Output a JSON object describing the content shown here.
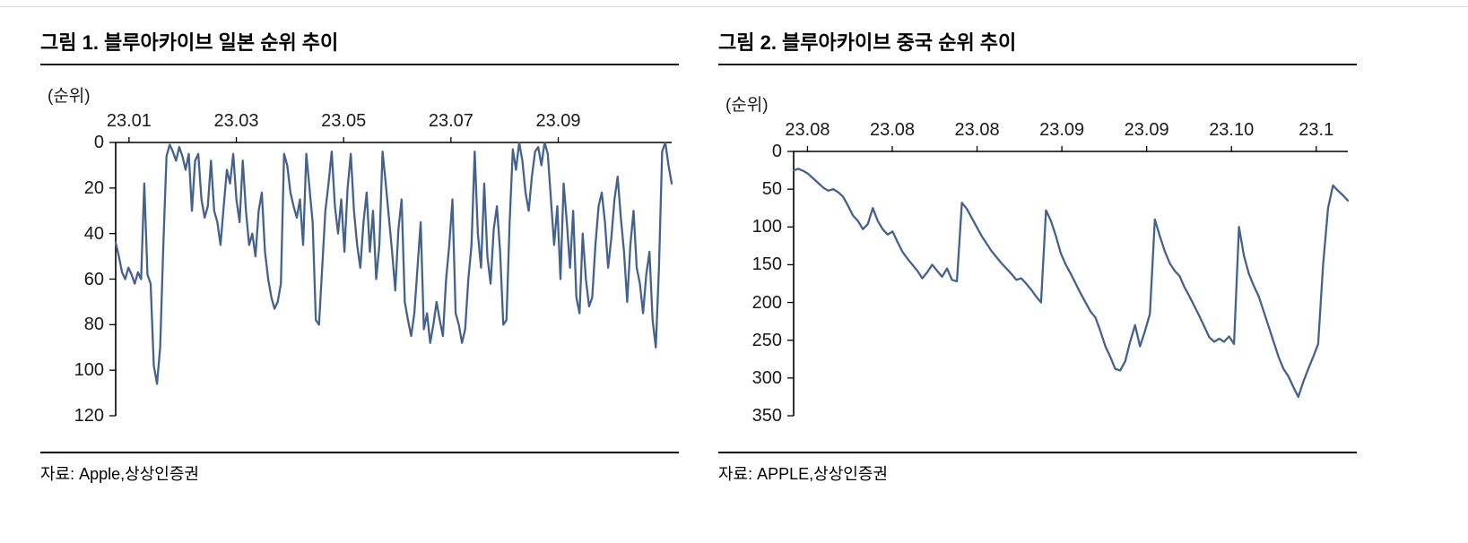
{
  "page": {
    "background": "#ffffff",
    "axis_color": "#000000",
    "text_color": "#1a1a1a"
  },
  "chart_data": [
    {
      "type": "line",
      "title": "그림 1. 블루아카이브 일본 순위 추이",
      "ylabel": "(순위)",
      "source": "자료: Apple,상상인증권",
      "x_tick_labels": [
        "23.01",
        "23.03",
        "23.05",
        "23.07",
        "23.09"
      ],
      "y_ticks": [
        0,
        20,
        40,
        60,
        80,
        100,
        120
      ],
      "ylim": [
        0,
        120
      ],
      "y_axis_inverted": true,
      "grid": false,
      "legend": "none",
      "line_color": "#44628C",
      "values": [
        44,
        50,
        57,
        60,
        55,
        58,
        62,
        57,
        60,
        18,
        58,
        62,
        98,
        106,
        90,
        45,
        6,
        1,
        4,
        8,
        2,
        6,
        12,
        5,
        30,
        8,
        5,
        25,
        33,
        28,
        8,
        30,
        35,
        45,
        28,
        12,
        18,
        5,
        25,
        35,
        8,
        30,
        45,
        40,
        50,
        30,
        22,
        48,
        60,
        68,
        73,
        70,
        62,
        5,
        10,
        22,
        28,
        33,
        25,
        45,
        5,
        20,
        35,
        78,
        80,
        55,
        30,
        18,
        4,
        28,
        40,
        25,
        48,
        20,
        5,
        30,
        45,
        55,
        35,
        22,
        48,
        30,
        60,
        45,
        4,
        18,
        33,
        48,
        65,
        38,
        25,
        70,
        78,
        85,
        75,
        55,
        35,
        82,
        75,
        88,
        80,
        70,
        78,
        85,
        60,
        45,
        25,
        75,
        80,
        88,
        82,
        60,
        45,
        4,
        40,
        55,
        18,
        50,
        62,
        38,
        28,
        48,
        80,
        78,
        35,
        3,
        12,
        0,
        8,
        22,
        30,
        15,
        4,
        2,
        10,
        0,
        5,
        25,
        45,
        28,
        60,
        18,
        35,
        55,
        30,
        68,
        75,
        40,
        60,
        72,
        68,
        45,
        28,
        22,
        35,
        55,
        42,
        25,
        15,
        33,
        48,
        70,
        45,
        30,
        55,
        62,
        75,
        58,
        48,
        78,
        90,
        55,
        4,
        0,
        10,
        18
      ]
    },
    {
      "type": "line",
      "title": "그림 2. 블루아카이브 중국 순위 추이",
      "ylabel": "(순위)",
      "source": "자료: APPLE,상상인증권",
      "x_tick_labels": [
        "23.08",
        "23.08",
        "23.08",
        "23.09",
        "23.09",
        "23.10",
        "23.1"
      ],
      "y_ticks": [
        0,
        50,
        100,
        150,
        200,
        250,
        300,
        350
      ],
      "ylim": [
        0,
        350
      ],
      "y_axis_inverted": true,
      "grid": false,
      "legend": "none",
      "line_color": "#44628C",
      "values": [
        25,
        23,
        26,
        30,
        36,
        42,
        48,
        52,
        50,
        54,
        60,
        72,
        85,
        92,
        103,
        96,
        75,
        92,
        103,
        110,
        106,
        120,
        133,
        142,
        150,
        158,
        168,
        160,
        150,
        158,
        166,
        155,
        170,
        172,
        68,
        76,
        88,
        100,
        112,
        122,
        132,
        140,
        148,
        155,
        162,
        170,
        168,
        175,
        183,
        192,
        200,
        78,
        92,
        112,
        135,
        150,
        162,
        175,
        188,
        200,
        212,
        220,
        238,
        258,
        272,
        288,
        290,
        278,
        252,
        230,
        258,
        238,
        215,
        90,
        112,
        132,
        148,
        158,
        165,
        180,
        192,
        205,
        218,
        232,
        246,
        252,
        248,
        252,
        245,
        255,
        100,
        138,
        162,
        178,
        192,
        212,
        232,
        252,
        272,
        288,
        298,
        312,
        325,
        305,
        288,
        272,
        255,
        150,
        75,
        45,
        52,
        58,
        65
      ]
    }
  ]
}
